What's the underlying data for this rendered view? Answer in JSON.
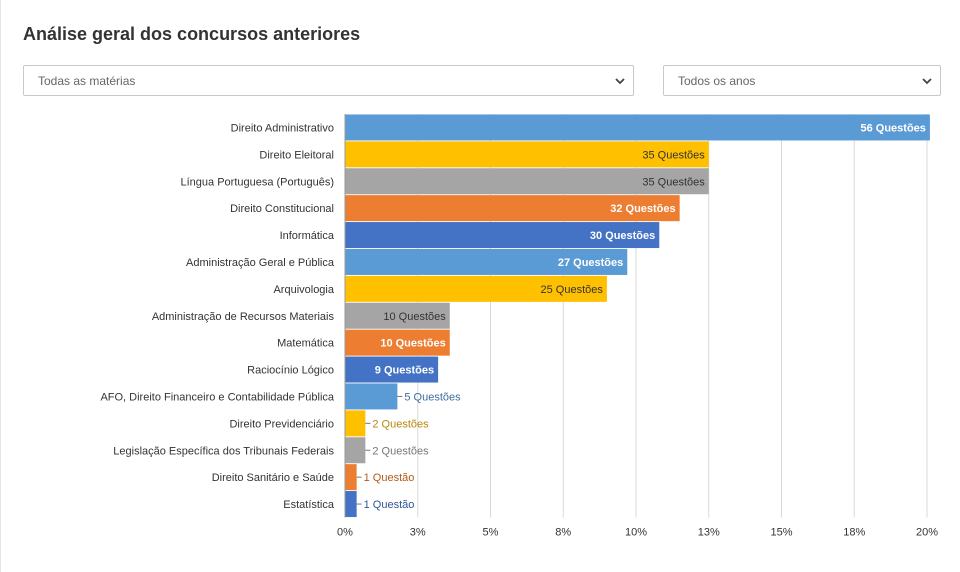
{
  "header": {
    "title": "Análise geral dos concursos anteriores"
  },
  "filters": {
    "subject": {
      "value": "Todas as matérias"
    },
    "year": {
      "value": "Todos os anos"
    }
  },
  "chart_data": {
    "type": "bar",
    "orientation": "horizontal",
    "categories": [
      "Direito Administrativo",
      "Direito Eleitoral",
      "Língua Portuguesa (Português)",
      "Direito Constitucional",
      "Informática",
      "Administração Geral e Pública",
      "Arquivologia",
      "Administração de Recursos Materiais",
      "Matemática",
      "Raciocínio Lógico",
      "AFO, Direito Financeiro e Contabilidade Pública",
      "Direito Previdenciário",
      "Legislação Específica dos Tribunais Federais",
      "Direito Sanitário e Saúde",
      "Estatística"
    ],
    "values": [
      20.1,
      12.5,
      12.5,
      11.5,
      10.8,
      9.7,
      9.0,
      3.6,
      3.6,
      3.2,
      1.8,
      0.7,
      0.7,
      0.4,
      0.4
    ],
    "data_labels": [
      "56 Questões",
      "35 Questões",
      "35 Questões",
      "32 Questões",
      "30 Questões",
      "27 Questões",
      "25 Questões",
      "10 Questões",
      "10 Questões",
      "9 Questões",
      "5 Questões",
      "2 Questões",
      "2 Questões",
      "1 Questão",
      "1 Questão"
    ],
    "colors": [
      "#5b9bd5",
      "#ffc000",
      "#a5a5a5",
      "#ed7d31",
      "#4472c4",
      "#5b9bd5",
      "#ffc000",
      "#a5a5a5",
      "#ed7d31",
      "#4472c4",
      "#5b9bd5",
      "#ffc000",
      "#a5a5a5",
      "#ed7d31",
      "#4472c4"
    ],
    "xlim": [
      0,
      20
    ],
    "xticks": [
      0,
      2.5,
      5,
      7.5,
      10,
      12.5,
      15,
      17.5,
      20
    ],
    "xtick_labels": [
      "0%",
      "3%",
      "5%",
      "8%",
      "10%",
      "13%",
      "15%",
      "18%",
      "20%"
    ],
    "xlabel": "",
    "ylabel": "",
    "grid": true
  }
}
